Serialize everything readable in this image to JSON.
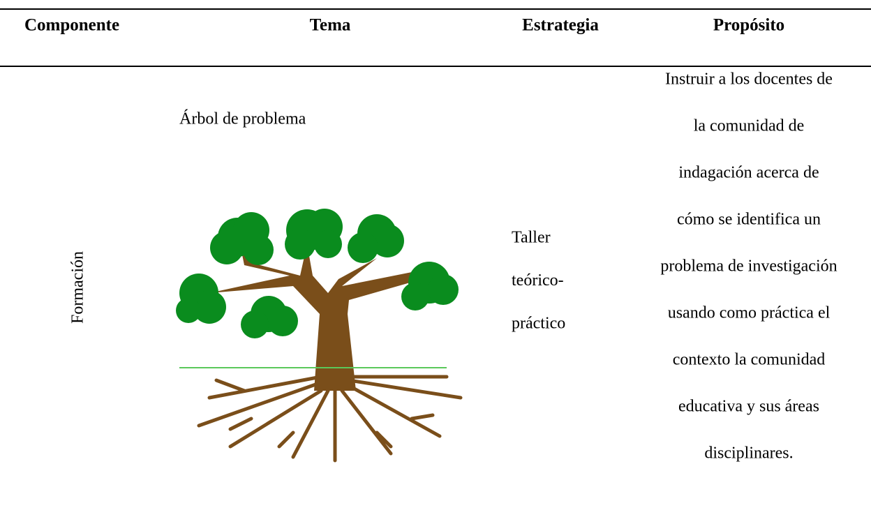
{
  "table": {
    "header": [
      "Componente",
      "Tema",
      "Estrategia",
      "Propósito"
    ],
    "rows": [
      {
        "componente": "Formación",
        "tema": "Árbol de problema",
        "estrategia": [
          "Taller",
          "teórico-",
          "práctico"
        ],
        "proposito": [
          "Instruir a los docentes de",
          "la comunidad de",
          "indagación acerca de",
          "cómo se identifica un",
          "problema de investigación",
          "usando como práctica el",
          "contexto la comunidad",
          "educativa y sus áreas",
          "disciplinares."
        ]
      }
    ]
  }
}
